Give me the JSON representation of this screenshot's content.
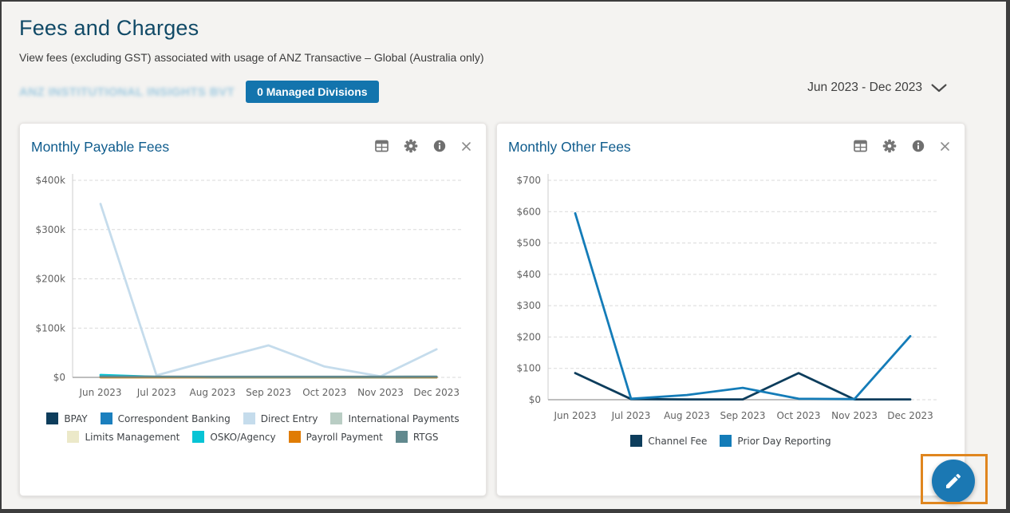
{
  "header": {
    "title": "Fees and Charges",
    "subtitle": "View fees (excluding GST) associated with usage of ANZ Transactive – Global (Australia only)",
    "org_name": "ANZ INSTITUTIONAL INSIGHTS BVT",
    "managed_divisions_label": "0 Managed Divisions",
    "date_range": "Jun 2023 - Dec 2023"
  },
  "icons": {
    "card_actions": [
      "table",
      "gear",
      "info",
      "close"
    ],
    "date_selector": "chevron-down",
    "fab": "pencil"
  },
  "colors": {
    "accent_blue": "#1374ad",
    "fab_blue": "#1b78b3",
    "annotation_orange": "#e0861f",
    "page_title_blue": "#114a67",
    "card_title_blue": "#0f5c8d"
  },
  "chart_data": [
    {
      "id": "payable",
      "type": "line",
      "title": "Monthly Payable Fees",
      "categories": [
        "Jun 2023",
        "Jul 2023",
        "Aug 2023",
        "Sep 2023",
        "Oct 2023",
        "Nov 2023",
        "Dec 2023"
      ],
      "ylim": [
        0,
        400000
      ],
      "y_ticks": [
        {
          "label": "$0",
          "value": 0
        },
        {
          "label": "$100k",
          "value": 100000
        },
        {
          "label": "$200k",
          "value": 200000
        },
        {
          "label": "$300k",
          "value": 300000
        },
        {
          "label": "$400k",
          "value": 400000
        }
      ],
      "grid": true,
      "legend_position": "bottom",
      "series": [
        {
          "name": "BPAY",
          "color": "#0d3d5c",
          "values": [
            300,
            200,
            200,
            200,
            200,
            200,
            200
          ]
        },
        {
          "name": "Correspondent Banking",
          "color": "#1b7fbe",
          "values": [
            200,
            100,
            100,
            100,
            100,
            100,
            100
          ]
        },
        {
          "name": "Direct Entry",
          "color": "#c5dcec",
          "values": [
            352000,
            4000,
            35000,
            65000,
            22000,
            2000,
            57000
          ]
        },
        {
          "name": "International Payments",
          "color": "#b9cdc4",
          "values": [
            400,
            300,
            300,
            300,
            300,
            300,
            300
          ]
        },
        {
          "name": "Limits Management",
          "color": "#ece9c9",
          "values": [
            200,
            200,
            200,
            200,
            200,
            200,
            200
          ]
        },
        {
          "name": "OSKO/Agency",
          "color": "#06c4d5",
          "values": [
            4800,
            900,
            400,
            400,
            400,
            400,
            400
          ]
        },
        {
          "name": "Payroll Payment",
          "color": "#e07c04",
          "values": [
            300,
            200,
            200,
            200,
            200,
            200,
            200
          ]
        },
        {
          "name": "RTGS",
          "color": "#61898e",
          "values": [
            1600,
            1400,
            1200,
            1200,
            1200,
            1200,
            1500
          ]
        }
      ]
    },
    {
      "id": "other",
      "type": "line",
      "title": "Monthly Other Fees",
      "categories": [
        "Jun 2023",
        "Jul 2023",
        "Aug 2023",
        "Sep 2023",
        "Oct 2023",
        "Nov 2023",
        "Dec 2023"
      ],
      "ylim": [
        0,
        700
      ],
      "y_ticks": [
        {
          "label": "$0",
          "value": 0
        },
        {
          "label": "$100",
          "value": 100
        },
        {
          "label": "$200",
          "value": 200
        },
        {
          "label": "$300",
          "value": 300
        },
        {
          "label": "$400",
          "value": 400
        },
        {
          "label": "$500",
          "value": 500
        },
        {
          "label": "$600",
          "value": 600
        },
        {
          "label": "$700",
          "value": 700
        }
      ],
      "grid": true,
      "legend_position": "bottom",
      "series": [
        {
          "name": "Channel Fee",
          "color": "#0d3d5c",
          "values": [
            85,
            2,
            1,
            1,
            85,
            1,
            1
          ]
        },
        {
          "name": "Prior Day Reporting",
          "color": "#147cb8",
          "values": [
            595,
            3,
            15,
            38,
            3,
            2,
            203
          ]
        }
      ]
    }
  ]
}
